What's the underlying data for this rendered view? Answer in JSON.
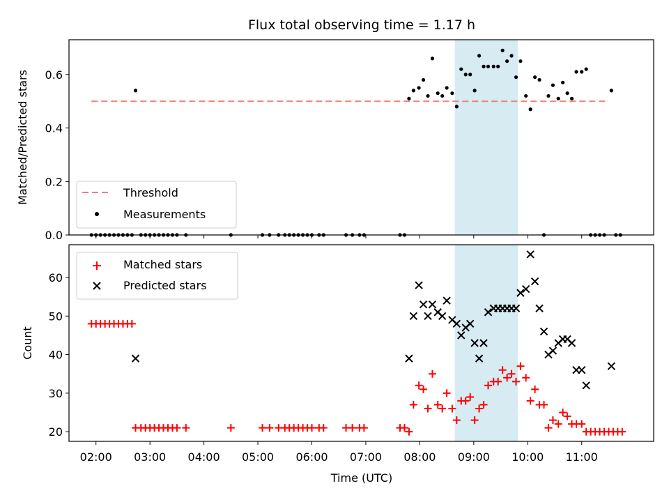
{
  "chart_data": [
    {
      "type": "scatter",
      "title": "Flux total observing time = 1.17 h",
      "xlabel": "",
      "ylabel": "Matched/Predicted stars",
      "ylim": [
        0,
        0.73
      ],
      "yticks": [
        0.0,
        0.2,
        0.4,
        0.6
      ],
      "ytick_labels": [
        "0.0",
        "0.2",
        "0.4",
        "0.6"
      ],
      "xlim": [
        "01:30",
        "12:20"
      ],
      "shaded_interval": [
        "08:39",
        "09:49"
      ],
      "shade_color": "#add8e6",
      "legend_position": "lower-left",
      "threshold": {
        "name": "Threshold",
        "y": 0.5,
        "x": [
          "01:55",
          "11:28"
        ],
        "color": "#f08080"
      },
      "series": [
        {
          "name": "Measurements",
          "color": "#000000",
          "marker": "dot",
          "points": [
            [
              "01:55",
              0
            ],
            [
              "02:00",
              0
            ],
            [
              "02:05",
              0
            ],
            [
              "02:10",
              0
            ],
            [
              "02:15",
              0
            ],
            [
              "02:20",
              0
            ],
            [
              "02:25",
              0
            ],
            [
              "02:30",
              0
            ],
            [
              "02:35",
              0
            ],
            [
              "02:40",
              0
            ],
            [
              "02:44",
              0.54
            ],
            [
              "02:50",
              0
            ],
            [
              "02:55",
              0
            ],
            [
              "03:00",
              0
            ],
            [
              "03:05",
              0
            ],
            [
              "03:10",
              0
            ],
            [
              "03:15",
              0
            ],
            [
              "03:20",
              0
            ],
            [
              "03:25",
              0
            ],
            [
              "03:30",
              0
            ],
            [
              "03:40",
              0
            ],
            [
              "04:30",
              0
            ],
            [
              "05:05",
              0
            ],
            [
              "05:13",
              0
            ],
            [
              "05:23",
              0
            ],
            [
              "05:30",
              0
            ],
            [
              "05:35",
              0
            ],
            [
              "05:40",
              0
            ],
            [
              "05:45",
              0
            ],
            [
              "05:50",
              0
            ],
            [
              "05:55",
              0
            ],
            [
              "06:00",
              0
            ],
            [
              "06:08",
              0
            ],
            [
              "06:13",
              0
            ],
            [
              "06:38",
              0
            ],
            [
              "06:45",
              0
            ],
            [
              "06:53",
              0
            ],
            [
              "06:58",
              0
            ],
            [
              "07:38",
              0
            ],
            [
              "07:43",
              0
            ],
            [
              "07:48",
              0.51
            ],
            [
              "07:53",
              0.54
            ],
            [
              "07:59",
              0.55
            ],
            [
              "08:04",
              0.58
            ],
            [
              "08:09",
              0.52
            ],
            [
              "08:14",
              0.66
            ],
            [
              "08:20",
              0.53
            ],
            [
              "08:25",
              0.52
            ],
            [
              "08:30",
              0.55
            ],
            [
              "08:36",
              0.53
            ],
            [
              "08:41",
              0.48
            ],
            [
              "08:46",
              0.62
            ],
            [
              "08:51",
              0.6
            ],
            [
              "08:56",
              0.6
            ],
            [
              "09:01",
              0.54
            ],
            [
              "09:06",
              0.67
            ],
            [
              "09:11",
              0.63
            ],
            [
              "09:16",
              0.63
            ],
            [
              "09:22",
              0.63
            ],
            [
              "09:27",
              0.63
            ],
            [
              "09:32",
              0.69
            ],
            [
              "09:37",
              0.65
            ],
            [
              "09:42",
              0.67
            ],
            [
              "09:47",
              0.59
            ],
            [
              "09:52",
              0.65
            ],
            [
              "09:58",
              0.52
            ],
            [
              "10:03",
              0.47
            ],
            [
              "10:08",
              0.59
            ],
            [
              "10:13",
              0.58
            ],
            [
              "10:18",
              0
            ],
            [
              "10:23",
              0.52
            ],
            [
              "10:28",
              0.56
            ],
            [
              "10:34",
              0.51
            ],
            [
              "10:39",
              0.57
            ],
            [
              "10:44",
              0.53
            ],
            [
              "10:49",
              0.51
            ],
            [
              "10:54",
              0.61
            ],
            [
              "11:00",
              0.61
            ],
            [
              "11:05",
              0.62
            ],
            [
              "11:10",
              0
            ],
            [
              "11:15",
              0
            ],
            [
              "11:20",
              0
            ],
            [
              "11:25",
              0
            ],
            [
              "11:33",
              0.54
            ],
            [
              "11:38",
              0
            ],
            [
              "11:43",
              0
            ]
          ]
        }
      ]
    },
    {
      "type": "scatter",
      "title": "",
      "xlabel": "Time (UTC)",
      "ylabel": "Count",
      "ylim": [
        17.5,
        68.5
      ],
      "yticks": [
        20,
        30,
        40,
        50,
        60
      ],
      "ytick_labels": [
        "20",
        "30",
        "40",
        "50",
        "60"
      ],
      "xlim": [
        "01:30",
        "12:20"
      ],
      "xticks": [
        "02:00",
        "03:00",
        "04:00",
        "05:00",
        "06:00",
        "07:00",
        "08:00",
        "09:00",
        "10:00",
        "11:00"
      ],
      "shaded_interval": [
        "08:39",
        "09:49"
      ],
      "shade_color": "#add8e6",
      "legend_position": "upper-left",
      "series": [
        {
          "name": "Matched stars",
          "color": "#ff0000",
          "marker": "plus",
          "points": [
            [
              "01:55",
              48
            ],
            [
              "02:00",
              48
            ],
            [
              "02:05",
              48
            ],
            [
              "02:10",
              48
            ],
            [
              "02:15",
              48
            ],
            [
              "02:20",
              48
            ],
            [
              "02:25",
              48
            ],
            [
              "02:30",
              48
            ],
            [
              "02:35",
              48
            ],
            [
              "02:40",
              48
            ],
            [
              "02:44",
              21
            ],
            [
              "02:50",
              21
            ],
            [
              "02:55",
              21
            ],
            [
              "03:00",
              21
            ],
            [
              "03:05",
              21
            ],
            [
              "03:10",
              21
            ],
            [
              "03:15",
              21
            ],
            [
              "03:20",
              21
            ],
            [
              "03:25",
              21
            ],
            [
              "03:30",
              21
            ],
            [
              "03:40",
              21
            ],
            [
              "04:30",
              21
            ],
            [
              "05:05",
              21
            ],
            [
              "05:13",
              21
            ],
            [
              "05:23",
              21
            ],
            [
              "05:30",
              21
            ],
            [
              "05:35",
              21
            ],
            [
              "05:40",
              21
            ],
            [
              "05:45",
              21
            ],
            [
              "05:50",
              21
            ],
            [
              "05:55",
              21
            ],
            [
              "06:00",
              21
            ],
            [
              "06:08",
              21
            ],
            [
              "06:13",
              21
            ],
            [
              "06:38",
              21
            ],
            [
              "06:45",
              21
            ],
            [
              "06:53",
              21
            ],
            [
              "06:58",
              21
            ],
            [
              "07:38",
              21
            ],
            [
              "07:43",
              21
            ],
            [
              "07:48",
              20
            ],
            [
              "07:53",
              27
            ],
            [
              "07:59",
              32
            ],
            [
              "08:04",
              31
            ],
            [
              "08:09",
              26
            ],
            [
              "08:14",
              35
            ],
            [
              "08:20",
              27
            ],
            [
              "08:25",
              26
            ],
            [
              "08:30",
              30
            ],
            [
              "08:36",
              26
            ],
            [
              "08:41",
              23
            ],
            [
              "08:46",
              28
            ],
            [
              "08:51",
              28
            ],
            [
              "08:56",
              29
            ],
            [
              "09:01",
              23
            ],
            [
              "09:06",
              26
            ],
            [
              "09:11",
              27
            ],
            [
              "09:16",
              32
            ],
            [
              "09:22",
              33
            ],
            [
              "09:27",
              33
            ],
            [
              "09:32",
              36
            ],
            [
              "09:37",
              34
            ],
            [
              "09:42",
              35
            ],
            [
              "09:47",
              33
            ],
            [
              "09:52",
              37
            ],
            [
              "09:58",
              34
            ],
            [
              "10:03",
              28
            ],
            [
              "10:08",
              31
            ],
            [
              "10:13",
              27
            ],
            [
              "10:18",
              27
            ],
            [
              "10:23",
              21
            ],
            [
              "10:28",
              23
            ],
            [
              "10:34",
              22
            ],
            [
              "10:39",
              25
            ],
            [
              "10:44",
              24
            ],
            [
              "10:49",
              22
            ],
            [
              "10:54",
              22
            ],
            [
              "11:00",
              22
            ],
            [
              "11:05",
              20
            ],
            [
              "11:10",
              20
            ],
            [
              "11:15",
              20
            ],
            [
              "11:20",
              20
            ],
            [
              "11:25",
              20
            ],
            [
              "11:30",
              20
            ],
            [
              "11:35",
              20
            ],
            [
              "11:40",
              20
            ],
            [
              "11:45",
              20
            ]
          ]
        },
        {
          "name": "Predicted stars",
          "color": "#000000",
          "marker": "x",
          "points": [
            [
              "02:44",
              39
            ],
            [
              "07:48",
              39
            ],
            [
              "07:53",
              50
            ],
            [
              "07:59",
              58
            ],
            [
              "08:04",
              53
            ],
            [
              "08:09",
              50
            ],
            [
              "08:14",
              53
            ],
            [
              "08:20",
              51
            ],
            [
              "08:25",
              50
            ],
            [
              "08:30",
              54
            ],
            [
              "08:36",
              49
            ],
            [
              "08:41",
              48
            ],
            [
              "08:46",
              45
            ],
            [
              "08:51",
              47
            ],
            [
              "08:56",
              48
            ],
            [
              "09:01",
              43
            ],
            [
              "09:06",
              39
            ],
            [
              "09:11",
              43
            ],
            [
              "09:16",
              51
            ],
            [
              "09:22",
              52
            ],
            [
              "09:27",
              52
            ],
            [
              "09:32",
              52
            ],
            [
              "09:37",
              52
            ],
            [
              "09:42",
              52
            ],
            [
              "09:47",
              52
            ],
            [
              "09:52",
              56
            ],
            [
              "09:58",
              57
            ],
            [
              "10:03",
              66
            ],
            [
              "10:08",
              59
            ],
            [
              "10:13",
              52
            ],
            [
              "10:18",
              46
            ],
            [
              "10:23",
              40
            ],
            [
              "10:28",
              41
            ],
            [
              "10:34",
              43
            ],
            [
              "10:39",
              44
            ],
            [
              "10:44",
              44
            ],
            [
              "10:49",
              43
            ],
            [
              "10:54",
              36
            ],
            [
              "11:00",
              36
            ],
            [
              "11:05",
              32
            ],
            [
              "11:33",
              37
            ]
          ]
        }
      ]
    }
  ]
}
